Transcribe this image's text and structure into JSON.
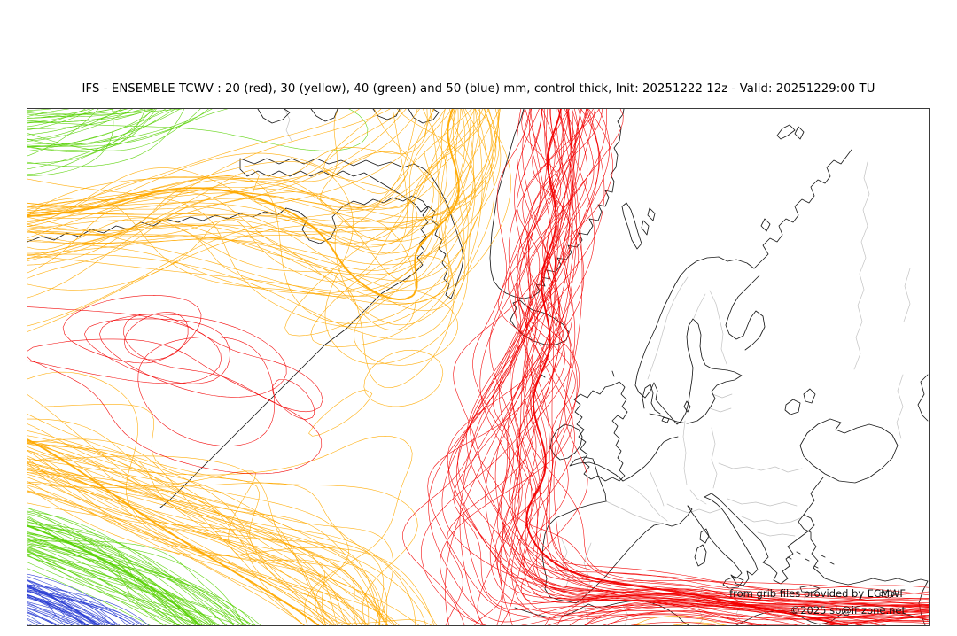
{
  "title": "IFS - ENSEMBLE TCWV : 20 (red), 30 (yellow), 40 (green) and 50 (blue) mm, control thick, Init: 20251222 12z - Valid: 20251229:00 TU",
  "credits": {
    "provider": "from grib files provided by ECMWF",
    "copyright": "©2025 sb@irizone.net"
  },
  "chart_data": {
    "type": "line",
    "subtype": "ensemble spaghetti contour map",
    "model": "IFS - ENSEMBLE",
    "parameter": "TCWV",
    "units": "mm",
    "init": "20251222 12z",
    "valid": "20251229:00 TU",
    "control_member_style": "thick",
    "contour_levels": [
      {
        "value": 20,
        "label": "20 (red)",
        "color": "#f20000"
      },
      {
        "value": 30,
        "label": "30 (yellow)",
        "color": "#ffaa00"
      },
      {
        "value": 40,
        "label": "40 (green)",
        "color": "#5cd30a"
      },
      {
        "value": 50,
        "label": "50 (blue)",
        "color": "#2c3fd4"
      }
    ],
    "geographic_extent": "North Atlantic, NE Canada, Greenland, Europe and Mediterranean",
    "visible_structure": [
      "dense 20 mm (red) ensemble bundle over the central and western North Atlantic from Labrador to south of Iceland",
      "30 mm (yellow/orange) band southwest of the red bundle covering the western mid-Atlantic",
      "40 mm (green) band in the far southwest corner and strands near the northwest corner",
      "50 mm (blue) contours confined to the extreme southwest corner",
      "separate dense 20 mm (red) cluster hugging the Mediterranean from Gibraltar to the Levant",
      "continental Europe, Scandinavia and the Black Sea region free of contours"
    ],
    "legend_position": "encoded in title",
    "grid": "off"
  },
  "map": {
    "background": "#ffffff",
    "frame_color": "#3a3a3a",
    "coastline_color": "#1b1b1b",
    "country_border_color": "#c3c3c3"
  }
}
